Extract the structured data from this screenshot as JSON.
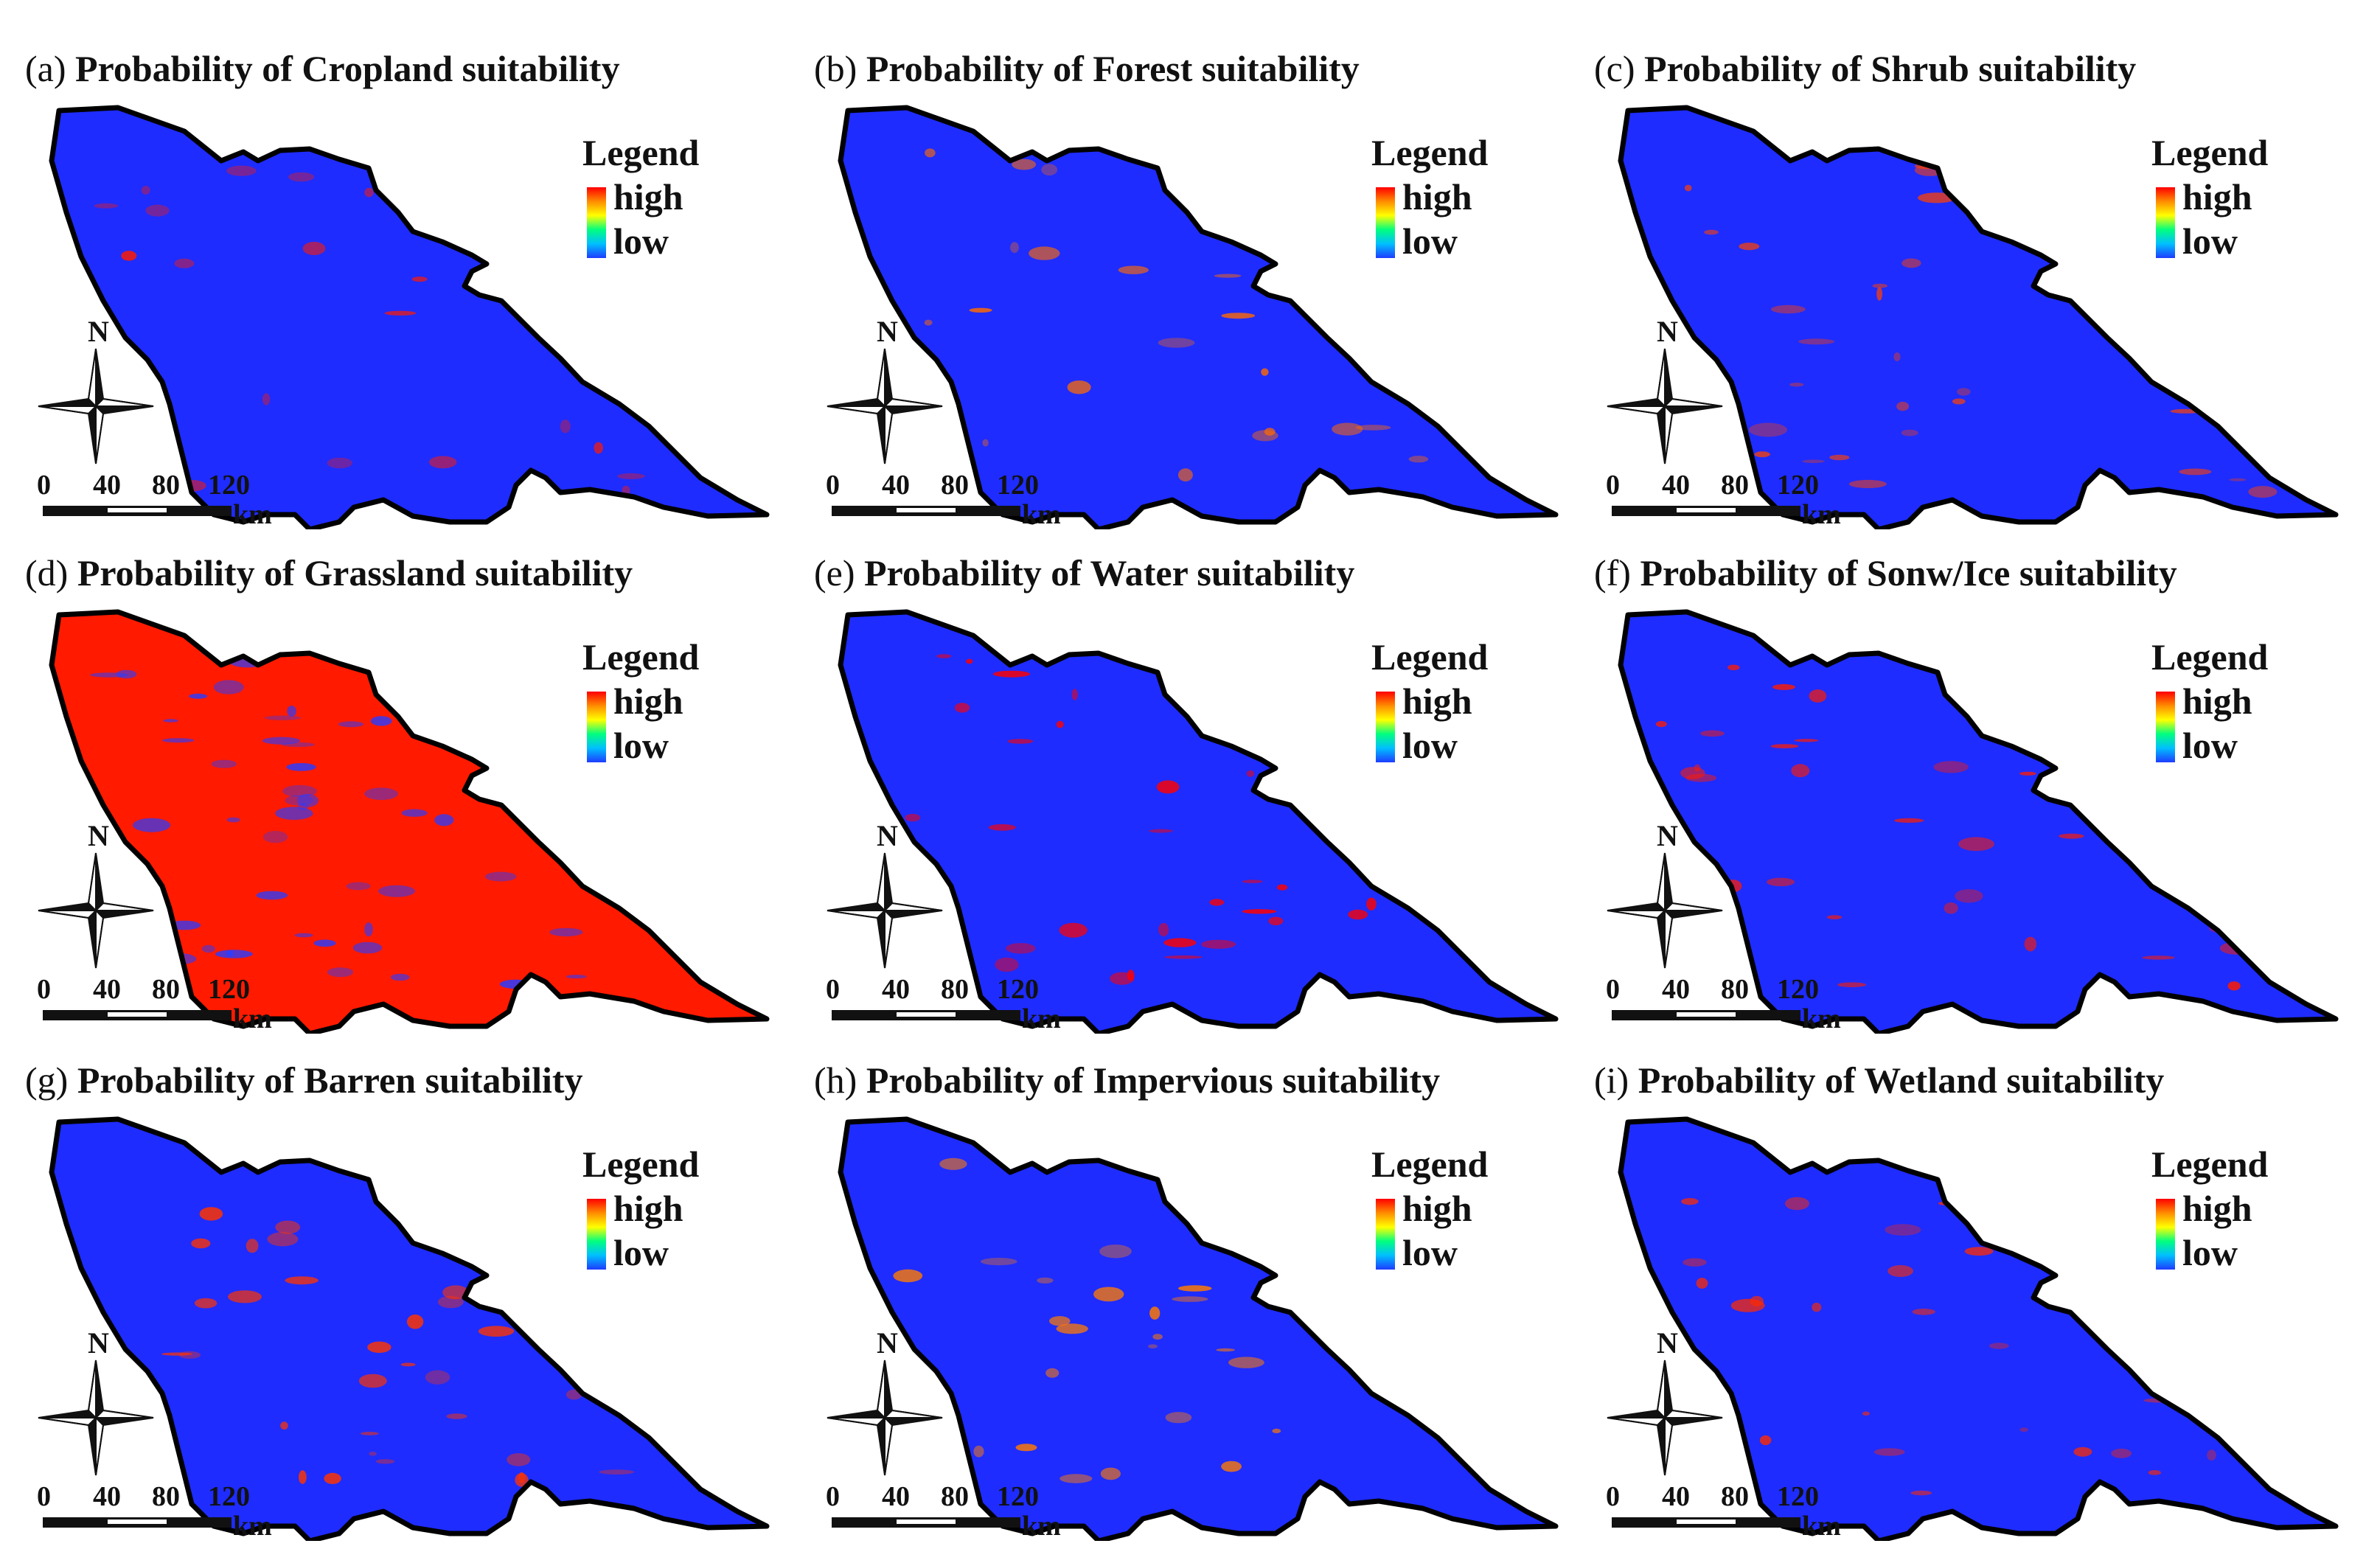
{
  "panels": [
    {
      "letter": "(a)",
      "title": "Probability of Cropland suitability",
      "dominant": "low",
      "hotspot_color": "#ff1a00"
    },
    {
      "letter": "(b)",
      "title": "Probability of Forest suitability",
      "dominant": "low",
      "hotspot_color": "#ff6a00"
    },
    {
      "letter": "(c)",
      "title": "Probability of Shrub suitability",
      "dominant": "low",
      "hotspot_color": "#ff4000"
    },
    {
      "letter": "(d)",
      "title": "Probability of Grassland suitability",
      "dominant": "high",
      "hotspot_color": "#2a3cff"
    },
    {
      "letter": "(e)",
      "title": "Probability of Water suitability",
      "dominant": "low",
      "hotspot_color": "#ff0000"
    },
    {
      "letter": "(f)",
      "title": "Probability of Sonw/Ice suitability",
      "dominant": "low",
      "hotspot_color": "#ff1a00"
    },
    {
      "letter": "(g)",
      "title": "Probability of Barren suitability",
      "dominant": "low",
      "hotspot_color": "#ff3300"
    },
    {
      "letter": "(h)",
      "title": "Probability of Impervious suitability",
      "dominant": "low",
      "hotspot_color": "#ff7a00"
    },
    {
      "letter": "(i)",
      "title": "Probability of Wetland suitability",
      "dominant": "low",
      "hotspot_color": "#ff2a00"
    }
  ],
  "legend": {
    "title": "Legend",
    "high": "high",
    "low": "low"
  },
  "compass": {
    "label": "N"
  },
  "scale": {
    "ticks": [
      "0",
      "40",
      "80",
      "120"
    ],
    "unit": "km"
  },
  "colors": {
    "low": "#1e2cff",
    "high": "#ff1a00",
    "outline": "#000000"
  }
}
